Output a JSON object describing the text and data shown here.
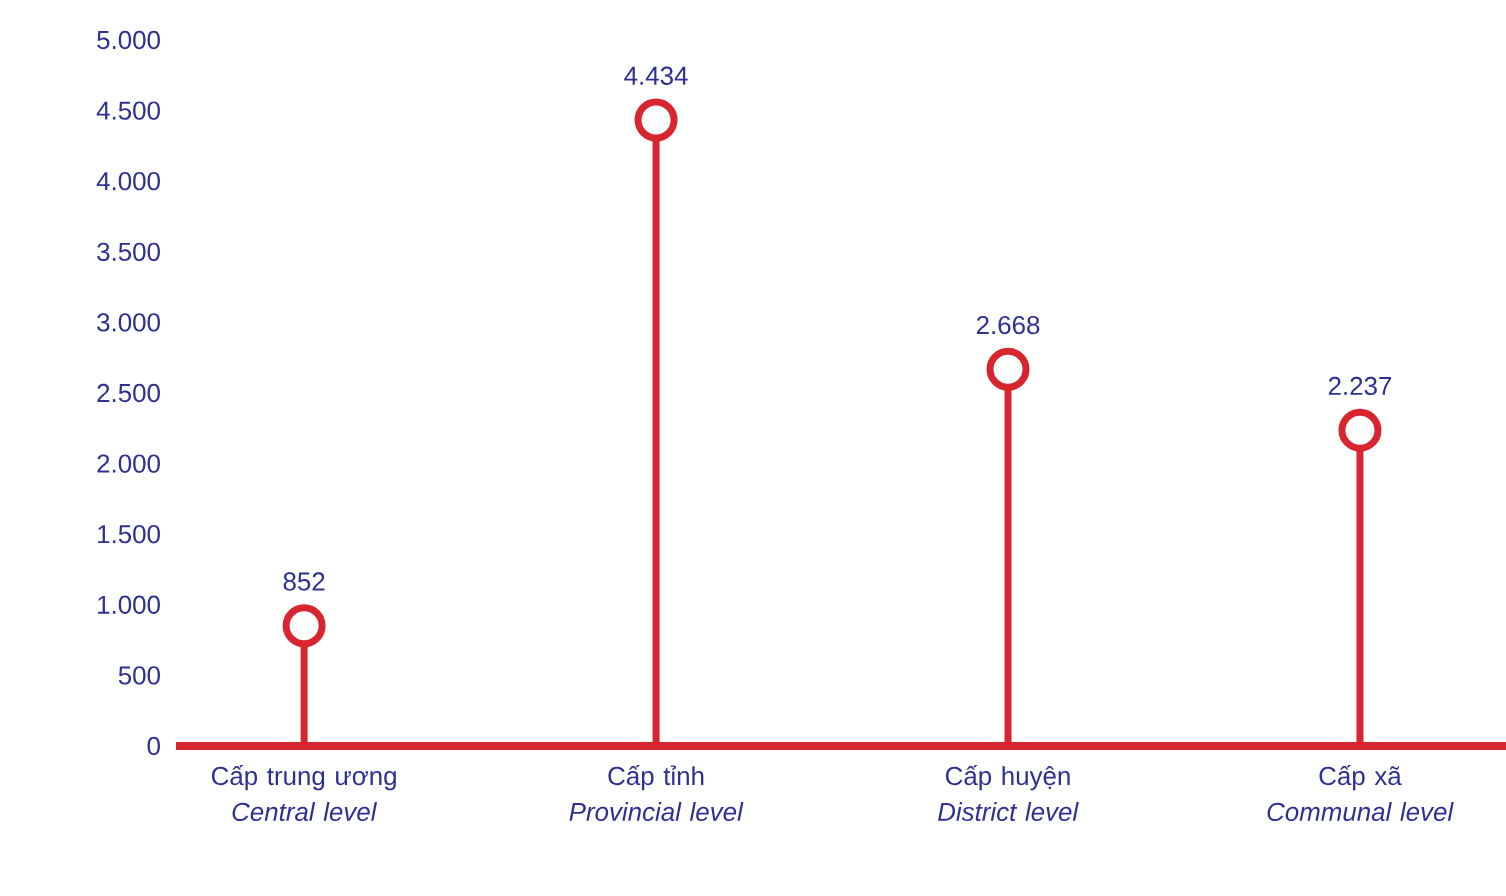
{
  "chart_data": {
    "type": "lollipop",
    "categories": [
      "Cấp trung ương *Central level*",
      "Cấp tỉnh *Provincial level*",
      "Cấp huyện *District level*",
      "Cấp xã *Communal level*"
    ],
    "values": [
      852,
      4434,
      2668,
      2237
    ],
    "value_labels": [
      "852",
      "4.434",
      "2.668",
      "2.237"
    ],
    "color": "#d7262e",
    "marker": "circle",
    "ylim": [
      0,
      5000
    ],
    "yticks": [
      {
        "value": 0,
        "label": "0"
      },
      {
        "value": 500,
        "label": "500"
      },
      {
        "value": 1000,
        "label": "1.000"
      },
      {
        "value": 1500,
        "label": "1.500"
      },
      {
        "value": 2000,
        "label": "2.000"
      },
      {
        "value": 2500,
        "label": "2.500"
      },
      {
        "value": 3000,
        "label": "3.000"
      },
      {
        "value": 3500,
        "label": "3.500"
      },
      {
        "value": 4000,
        "label": "4.000"
      },
      {
        "value": 4500,
        "label": "4.500"
      },
      {
        "value": 5000,
        "label": "5.000"
      }
    ]
  }
}
